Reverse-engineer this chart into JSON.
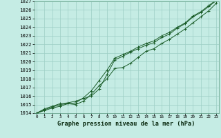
{
  "title": "Graphe pression niveau de la mer (hPa)",
  "background_color": "#c5ece4",
  "grid_color": "#9dcfc5",
  "line_color": "#1a5c28",
  "x_hours": [
    0,
    1,
    2,
    3,
    4,
    5,
    6,
    7,
    8,
    9,
    10,
    11,
    12,
    13,
    14,
    15,
    16,
    17,
    18,
    19,
    20,
    21,
    22,
    23
  ],
  "line1": [
    1014.0,
    1014.5,
    1014.8,
    1015.1,
    1015.2,
    1015.4,
    1015.7,
    1016.0,
    1016.8,
    1018.5,
    1020.2,
    1020.6,
    1021.1,
    1021.5,
    1021.9,
    1022.2,
    1022.8,
    1023.2,
    1023.9,
    1024.4,
    1025.2,
    1025.7,
    1026.4,
    1027.1
  ],
  "line2": [
    1014.0,
    1014.4,
    1014.7,
    1015.0,
    1015.1,
    1015.2,
    1015.8,
    1016.6,
    1017.8,
    1019.0,
    1020.4,
    1020.8,
    1021.2,
    1021.7,
    1022.1,
    1022.4,
    1023.0,
    1023.4,
    1024.0,
    1024.5,
    1025.3,
    1025.8,
    1026.5,
    1027.2
  ],
  "line3": [
    1014.0,
    1014.3,
    1014.6,
    1014.8,
    1015.1,
    1015.0,
    1015.4,
    1016.2,
    1017.2,
    1018.0,
    1019.2,
    1019.3,
    1019.8,
    1020.5,
    1021.2,
    1021.5,
    1022.1,
    1022.6,
    1023.2,
    1023.8,
    1024.5,
    1025.2,
    1025.9,
    1026.8
  ],
  "ylim": [
    1014,
    1027
  ],
  "yticks": [
    1014,
    1015,
    1016,
    1017,
    1018,
    1019,
    1020,
    1021,
    1022,
    1023,
    1024,
    1025,
    1026,
    1027
  ],
  "marker": "+"
}
